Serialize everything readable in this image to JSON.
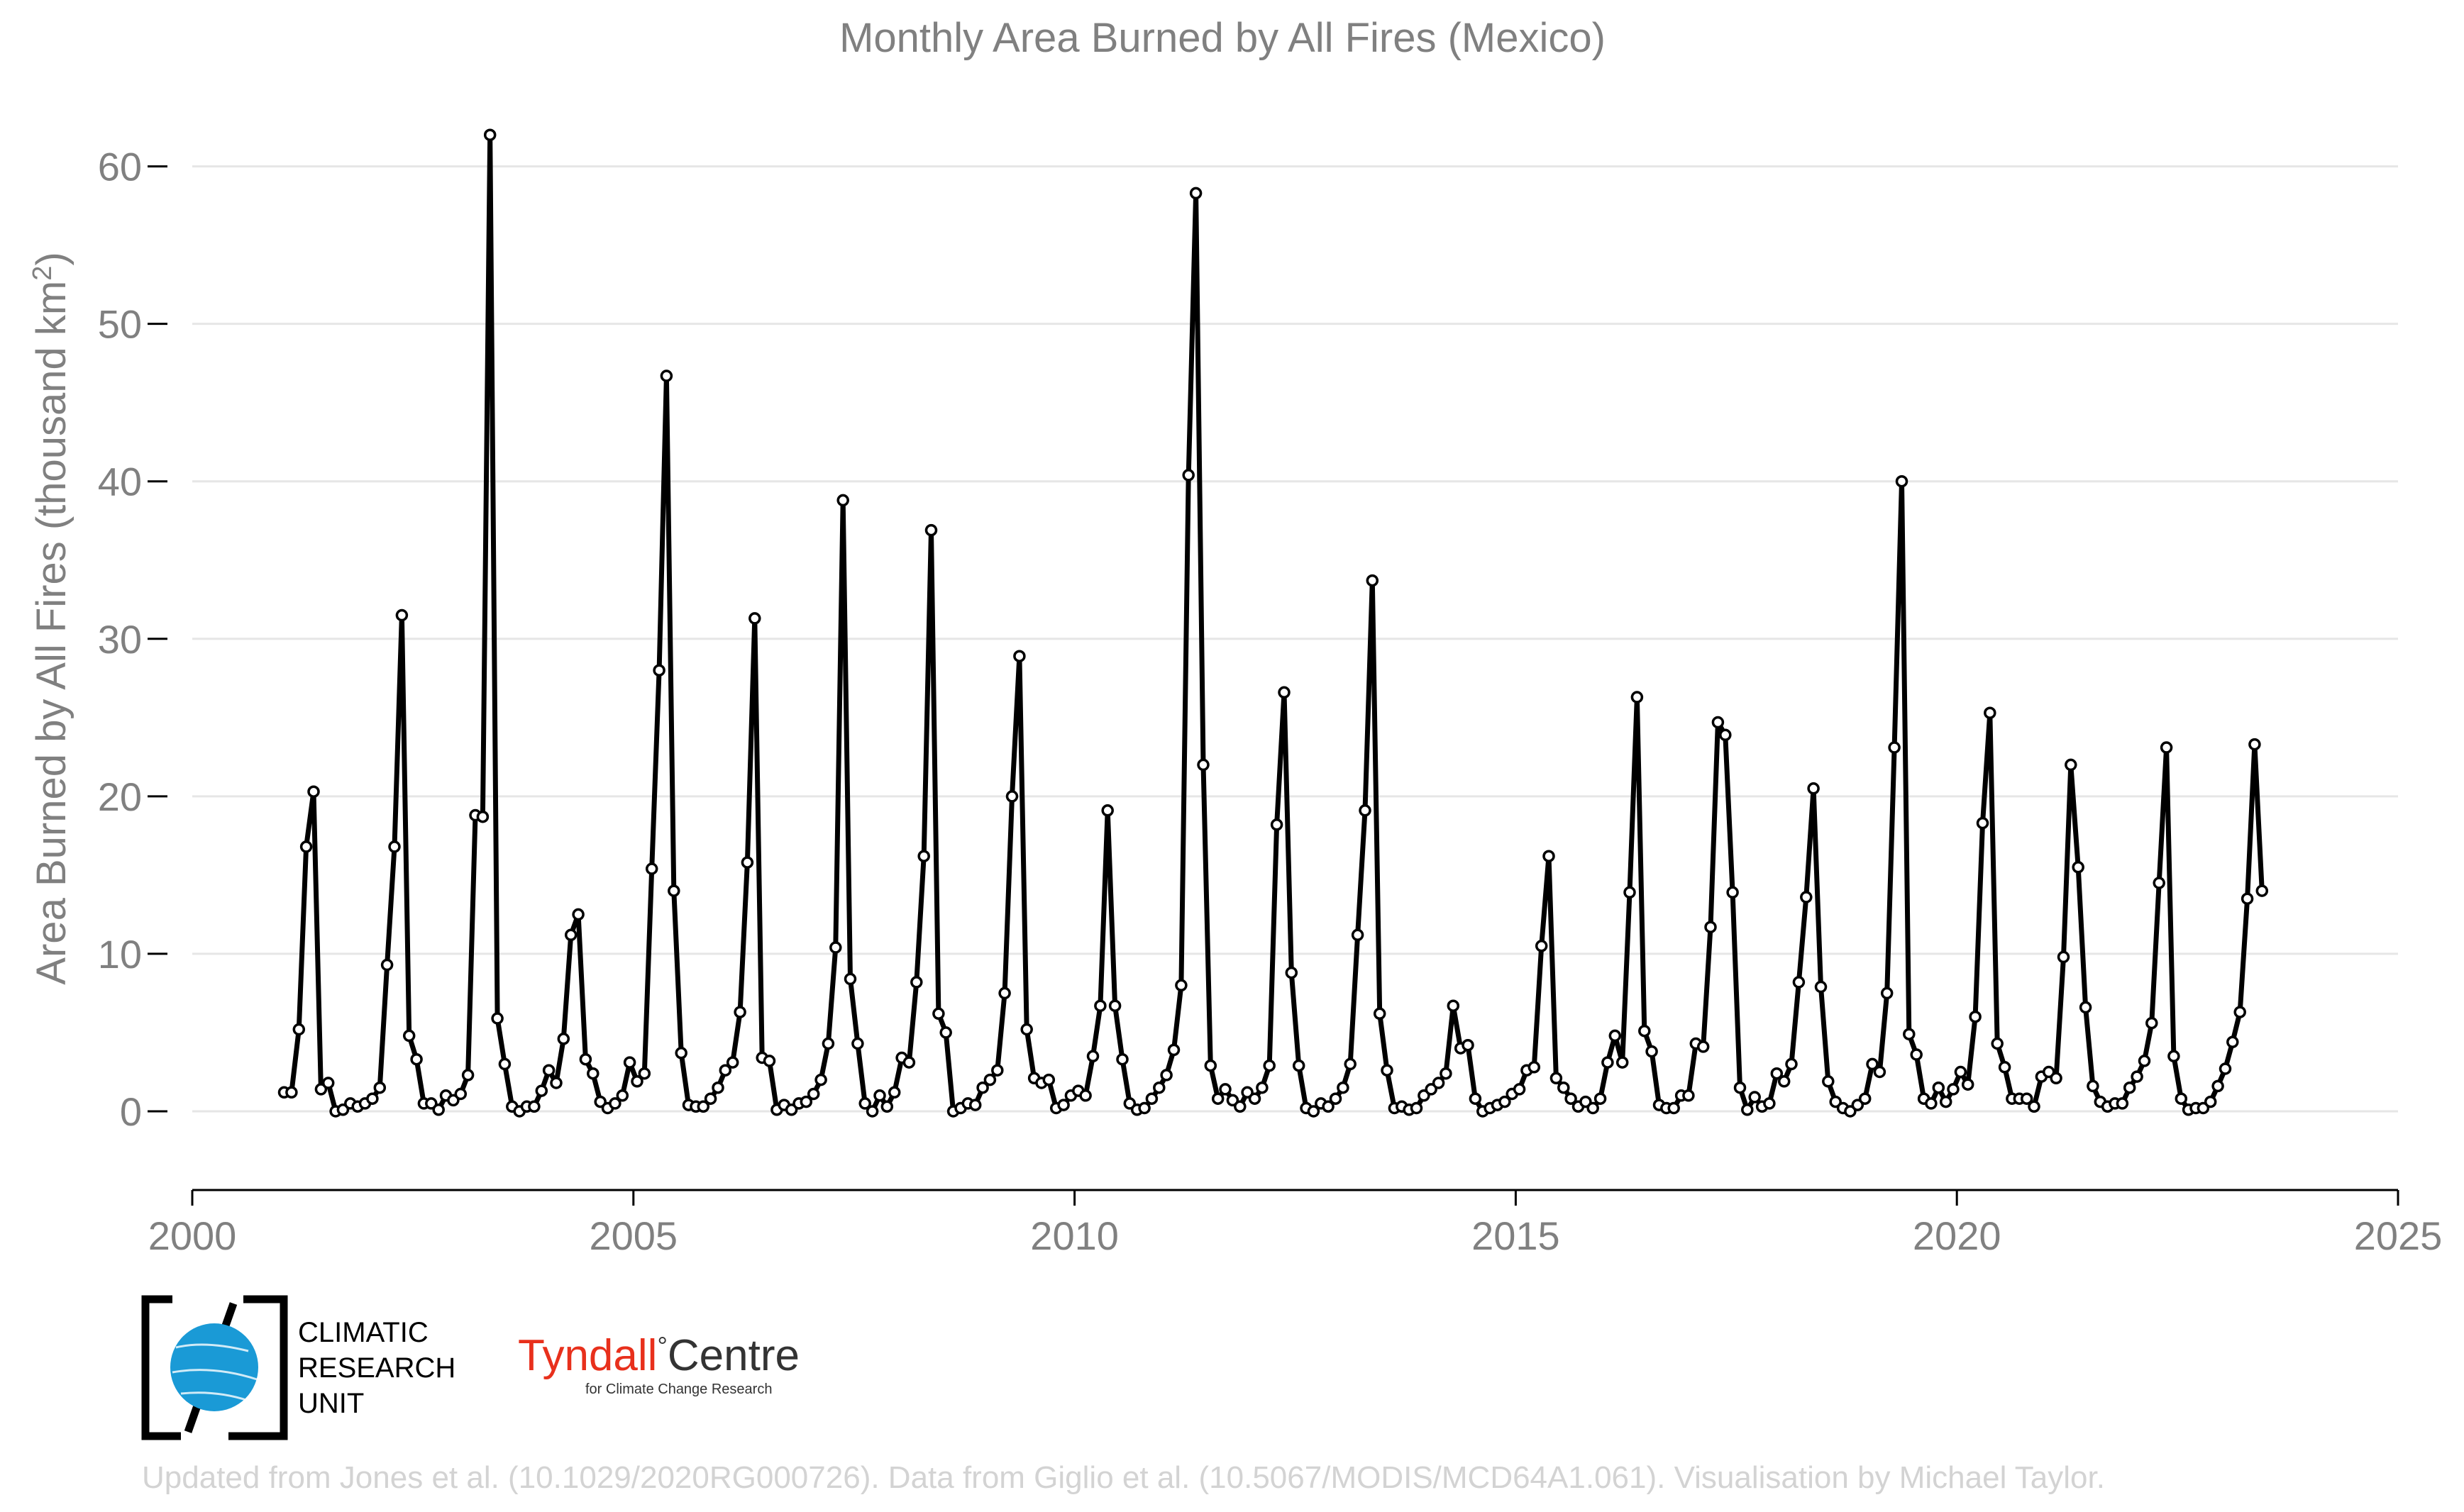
{
  "chart_data": {
    "type": "line",
    "title": "Monthly Area Burned by All Fires (Mexico)",
    "xlabel": "",
    "ylabel": "Area Burned by All Fires (thousand km",
    "ylabel_sup": "2",
    "ylabel_close": ")",
    "xlim": [
      2000,
      2025
    ],
    "ylim": [
      -5,
      63
    ],
    "x_ticks": [
      2000,
      2005,
      2010,
      2015,
      2020,
      2025
    ],
    "y_ticks": [
      0,
      10,
      20,
      30,
      40,
      50,
      60
    ],
    "grid": "horizontal",
    "series_color": "#000000",
    "marker_fill": "#ffffff",
    "x_start": "2001-01",
    "x_step": "month",
    "values": [
      1.2,
      1.2,
      5.2,
      16.8,
      20.3,
      1.4,
      1.8,
      0.0,
      0.1,
      0.5,
      0.3,
      0.5,
      0.8,
      1.5,
      9.3,
      16.8,
      31.5,
      4.8,
      3.3,
      0.5,
      0.5,
      0.1,
      1.0,
      0.7,
      1.1,
      2.3,
      18.8,
      18.7,
      62.0,
      5.9,
      3.0,
      0.3,
      0.0,
      0.3,
      0.3,
      1.3,
      2.6,
      1.8,
      4.6,
      11.2,
      12.5,
      3.3,
      2.4,
      0.6,
      0.2,
      0.5,
      1.0,
      3.1,
      1.9,
      2.4,
      15.4,
      28.0,
      46.7,
      14.0,
      3.7,
      0.4,
      0.3,
      0.3,
      0.8,
      1.5,
      2.6,
      3.1,
      6.3,
      15.8,
      31.3,
      3.4,
      3.2,
      0.1,
      0.4,
      0.1,
      0.5,
      0.6,
      1.1,
      2.0,
      4.3,
      10.4,
      38.8,
      8.4,
      4.3,
      0.5,
      0.0,
      1.0,
      0.3,
      1.2,
      3.4,
      3.1,
      8.2,
      16.2,
      36.9,
      6.2,
      5.0,
      0.0,
      0.2,
      0.5,
      0.4,
      1.5,
      2.0,
      2.6,
      7.5,
      20.0,
      28.9,
      5.2,
      2.1,
      1.8,
      2.0,
      0.2,
      0.4,
      1.0,
      1.3,
      1.0,
      3.5,
      6.7,
      19.1,
      6.7,
      3.3,
      0.5,
      0.1,
      0.2,
      0.8,
      1.5,
      2.3,
      3.9,
      8.0,
      40.4,
      58.3,
      22.0,
      2.9,
      0.8,
      1.4,
      0.7,
      0.3,
      1.2,
      0.8,
      1.5,
      2.9,
      18.2,
      26.6,
      8.8,
      2.9,
      0.2,
      0.0,
      0.5,
      0.3,
      0.8,
      1.5,
      3.0,
      11.2,
      19.1,
      33.7,
      6.2,
      2.6,
      0.2,
      0.3,
      0.1,
      0.2,
      1.0,
      1.4,
      1.8,
      2.4,
      6.7,
      4.0,
      4.2,
      0.8,
      0.0,
      0.2,
      0.4,
      0.6,
      1.1,
      1.4,
      2.6,
      2.8,
      10.5,
      16.2,
      2.1,
      1.5,
      0.8,
      0.3,
      0.6,
      0.2,
      0.8,
      3.1,
      4.8,
      3.1,
      13.9,
      26.3,
      5.1,
      3.8,
      0.4,
      0.2,
      0.2,
      1.0,
      1.0,
      4.3,
      4.1,
      11.7,
      24.7,
      23.9,
      13.9,
      1.5,
      0.1,
      0.9,
      0.3,
      0.5,
      2.4,
      1.9,
      3.0,
      8.2,
      13.6,
      20.5,
      7.9,
      1.9,
      0.6,
      0.2,
      0.0,
      0.4,
      0.8,
      3.0,
      2.5,
      7.5,
      23.1,
      40.0,
      4.9,
      3.6,
      0.8,
      0.5,
      1.5,
      0.6,
      1.4,
      2.5,
      1.7,
      6.0,
      18.3,
      25.3,
      4.3,
      2.8,
      0.8,
      0.8,
      0.8,
      0.3,
      2.2,
      2.5,
      2.1,
      9.8,
      22.0,
      15.5,
      6.6,
      1.6,
      0.6,
      0.3,
      0.5,
      0.5,
      1.5,
      2.2,
      3.2,
      5.6,
      14.5,
      23.1,
      3.5,
      0.8,
      0.1,
      0.2,
      0.2,
      0.6,
      1.6,
      2.7,
      4.4,
      6.3,
      13.5,
      23.3,
      14.0
    ]
  },
  "footer": {
    "credit": "Updated from Jones et al. (10.1029/2020RG000726). Data from Giglio et al. (10.5067/MODIS/MCD64A1.061). Visualisation by Michael Taylor."
  },
  "logos": {
    "cru_lines": [
      "CLIMATIC",
      "RESEARCH",
      "UNIT"
    ],
    "tyndall_a": "Tyndall",
    "tyndall_deg": "°",
    "tyndall_b": "Centre",
    "tyndall_sub": "for Climate Change Research",
    "tyndall_red": "#e8301c",
    "cru_blue": "#1a9ad6"
  }
}
